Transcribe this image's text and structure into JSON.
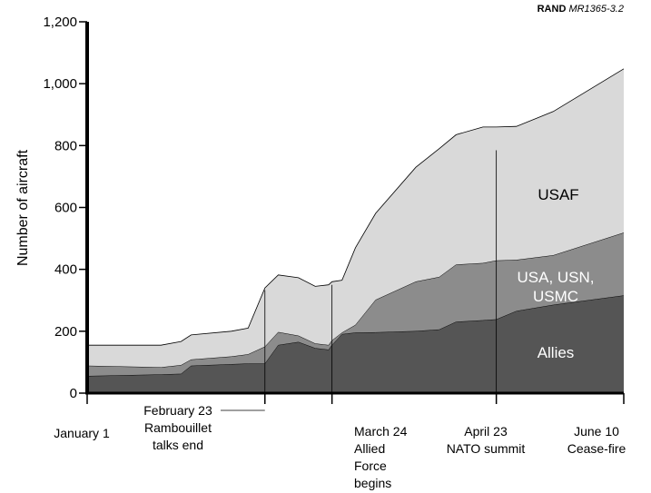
{
  "header": {
    "org": "RAND",
    "code": "MR1365-3.2"
  },
  "chart_data": {
    "type": "area",
    "stacked": true,
    "ylabel": "Number  of aircraft",
    "xlabel": "",
    "ylim": [
      0,
      1200
    ],
    "yticks": [
      0,
      200,
      400,
      600,
      800,
      1000,
      1200
    ],
    "ytick_labels": [
      "0",
      "200",
      "400",
      "600",
      "800",
      "1,000",
      "1,200"
    ],
    "grid": false,
    "x_units": "days since January 1 (1999)",
    "xlim": [
      0,
      160
    ],
    "x": [
      0,
      22,
      28,
      31,
      43,
      48,
      53,
      57,
      63,
      68,
      72,
      73,
      76,
      80,
      86,
      98,
      105,
      110,
      118,
      122,
      128,
      139,
      160
    ],
    "series": [
      {
        "name": "Allies",
        "color": "#555555",
        "values": [
          55,
          60,
          62,
          88,
          93,
          95,
          95,
          155,
          165,
          145,
          140,
          155,
          190,
          195,
          196,
          200,
          205,
          230,
          235,
          238,
          265,
          285,
          315
        ]
      },
      {
        "name": "USA, USN, USMC",
        "color": "#8c8c8c",
        "values": [
          33,
          23,
          28,
          20,
          25,
          30,
          55,
          42,
          20,
          15,
          15,
          15,
          5,
          25,
          105,
          160,
          170,
          185,
          185,
          190,
          165,
          160,
          203
        ]
      },
      {
        "name": "USAF",
        "color": "#d9d9d9",
        "values": [
          67,
          72,
          77,
          80,
          82,
          85,
          190,
          185,
          188,
          185,
          195,
          190,
          170,
          250,
          280,
          370,
          415,
          420,
          440,
          432,
          432,
          465,
          530
        ]
      }
    ],
    "annotations": [
      {
        "x": 0,
        "text": [
          "January 1"
        ]
      },
      {
        "x": 53,
        "text": [
          "February 23",
          "Rambouillet",
          "talks end"
        ],
        "line_top": 333
      },
      {
        "x": 73,
        "text": [
          "March 24",
          "Allied",
          "Force",
          "begins"
        ],
        "line_top": 350
      },
      {
        "x": 122,
        "text": [
          "April 23",
          "NATO summit"
        ],
        "line_top": 785
      },
      {
        "x": 160,
        "text": [
          "June 10",
          "Cease-fire"
        ]
      }
    ]
  }
}
